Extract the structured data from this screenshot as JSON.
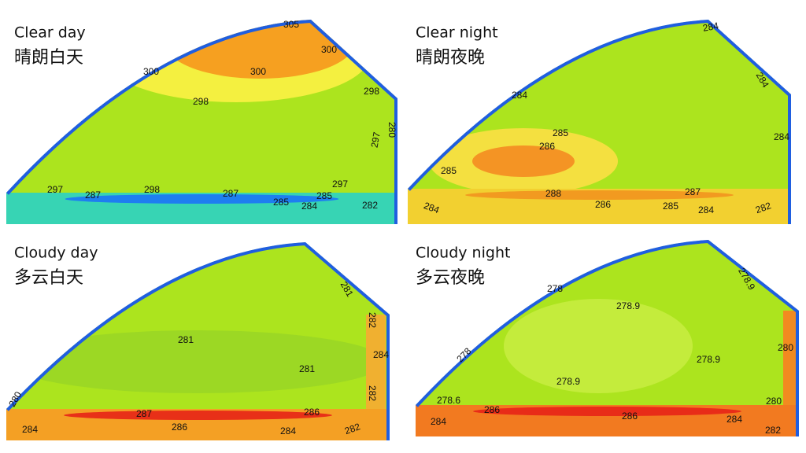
{
  "panels": [
    {
      "title_en": "Clear day",
      "title_zh": "晴朗白天",
      "labels": [
        305,
        300,
        300,
        300,
        298,
        298,
        280,
        297,
        297,
        287,
        298,
        287,
        285,
        284,
        285,
        297,
        282
      ]
    },
    {
      "title_en": "Clear night",
      "title_zh": "晴朗夜晚",
      "labels": [
        284,
        284,
        284,
        285,
        286,
        284,
        285,
        288,
        287,
        284,
        286,
        285,
        284,
        282
      ]
    },
    {
      "title_en": "Cloudy day",
      "title_zh": "多云白天",
      "labels": [
        281,
        282,
        281,
        284,
        281,
        282,
        280,
        287,
        286,
        286,
        284,
        284,
        282
      ]
    },
    {
      "title_en": "Cloudy night",
      "title_zh": "多云夜晚",
      "labels": [
        278.9,
        278,
        278.9,
        280,
        278,
        278.9,
        278.9,
        278.6,
        280,
        286,
        286,
        284,
        284,
        282
      ]
    }
  ]
}
